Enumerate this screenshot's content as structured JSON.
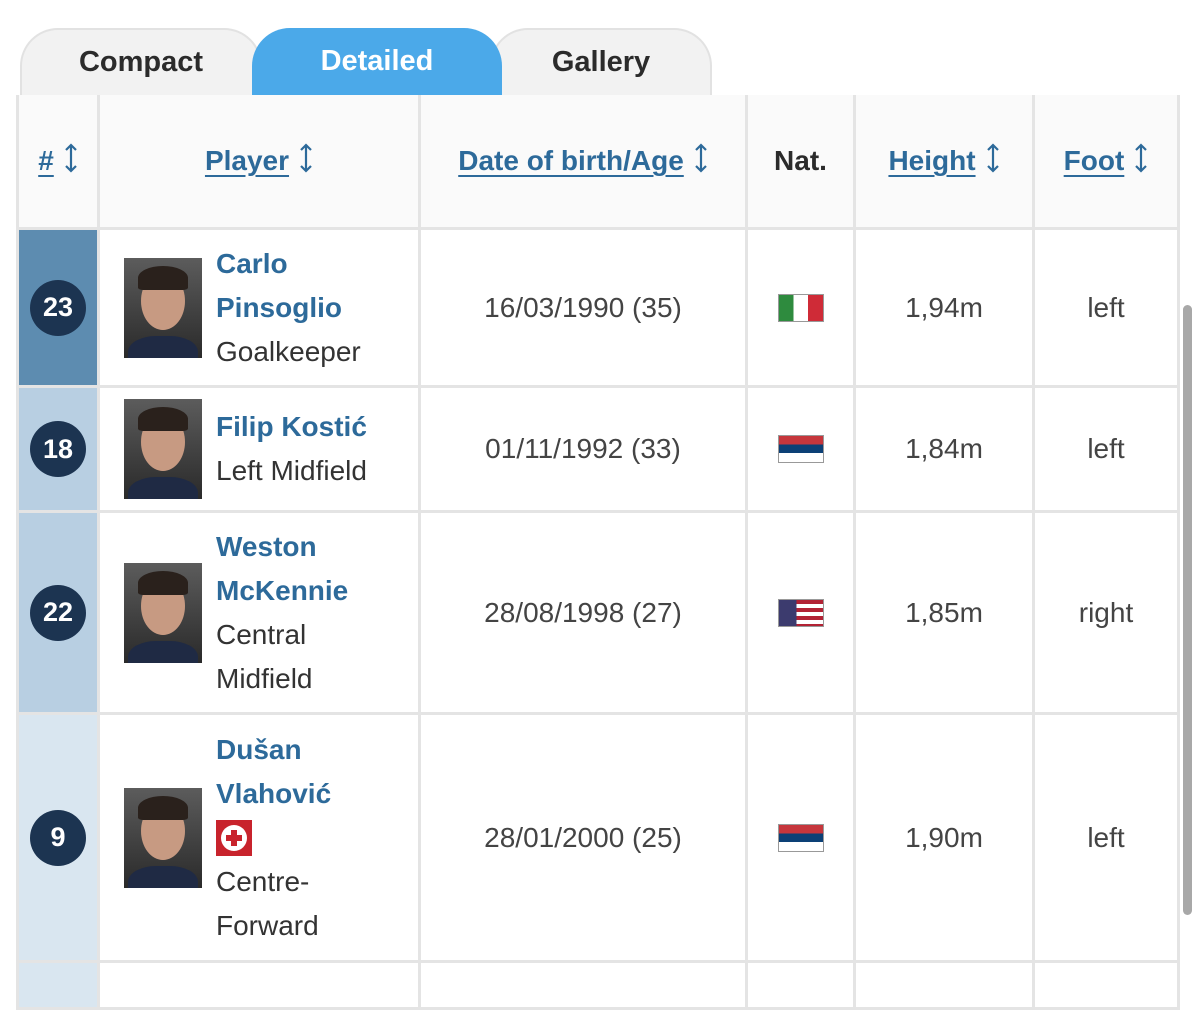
{
  "tabs": [
    {
      "label": "Compact",
      "active": false
    },
    {
      "label": "Detailed",
      "active": true
    },
    {
      "label": "Gallery",
      "active": false
    }
  ],
  "table": {
    "headers": [
      {
        "label": "#",
        "sortable": true
      },
      {
        "label": "Player",
        "sortable": true
      },
      {
        "label": "Date of birth/Age",
        "sortable": true
      },
      {
        "label": "Nat.",
        "sortable": false
      },
      {
        "label": "Height",
        "sortable": true
      },
      {
        "label": "Foot",
        "sortable": true
      }
    ],
    "rows": [
      {
        "number": "23",
        "name": "Carlo Pinsoglio",
        "position": "Goalkeeper",
        "dob_age": "16/03/1990 (35)",
        "height": "1,94m",
        "foot": "left"
      },
      {
        "number": "18",
        "name": "Filip Kostić",
        "position": "Left Midfield",
        "dob_age": "01/11/1992 (33)",
        "height": "1,84m",
        "foot": "left"
      },
      {
        "number": "22",
        "name": "Weston McKennie",
        "position": "Central Midfield",
        "dob_age": "28/08/1998 (27)",
        "height": "1,85m",
        "foot": "right"
      },
      {
        "number": "9",
        "name": "Dušan Vlahović",
        "position": "Centre-Forward",
        "dob_age": "28/01/2000 (25)",
        "height": "1,90m",
        "foot": "left"
      }
    ]
  }
}
